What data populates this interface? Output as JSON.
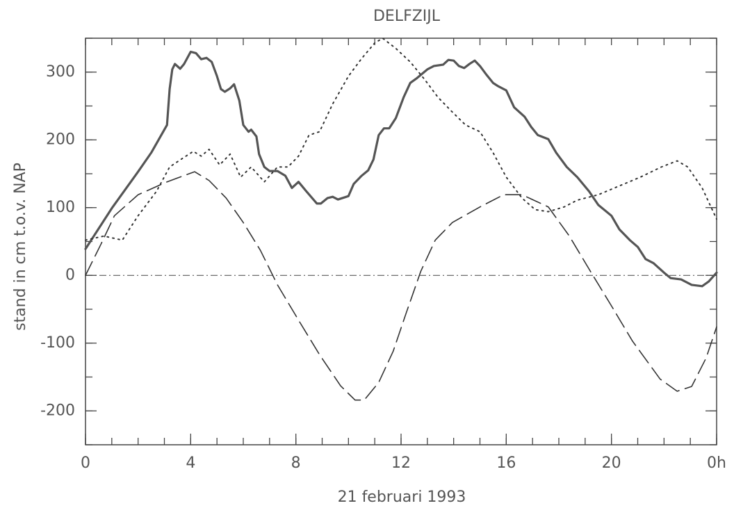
{
  "chart_data": {
    "type": "line",
    "title": "DELFZIJL",
    "x_label": "21 februari 1993",
    "y_label": "stand in cm t.o.v. NAP",
    "xlim": [
      0,
      24
    ],
    "xticks": [
      0,
      4,
      8,
      12,
      16,
      20,
      {
        "value": 24,
        "label": "0h"
      }
    ],
    "ylim": [
      -250,
      350
    ],
    "yticks": [
      -200,
      -100,
      0,
      100,
      200,
      300
    ],
    "series": [
      {
        "color": "#555555",
        "style": "solid",
        "x": [
          0,
          1,
          2,
          2.5,
          3.1,
          3.2,
          3.3,
          3.4,
          3.6,
          3.75,
          4.0,
          4.2,
          4.4,
          4.6,
          4.8,
          5.0,
          5.15,
          5.3,
          5.5,
          5.65,
          5.85,
          6.0,
          6.2,
          6.3,
          6.5,
          6.6,
          6.8,
          7.0,
          7.3,
          7.6,
          7.85,
          8.1,
          8.4,
          8.8,
          8.95,
          9.2,
          9.4,
          9.6,
          10.0,
          10.2,
          10.5,
          10.75,
          10.95,
          11.15,
          11.35,
          11.55,
          11.8,
          12.1,
          12.35,
          12.6,
          13.0,
          13.25,
          13.6,
          13.8,
          14.0,
          14.2,
          14.4,
          14.6,
          14.8,
          15.0,
          15.25,
          15.5,
          15.7,
          16.0,
          16.3,
          16.7,
          16.95,
          17.2,
          17.6,
          17.9,
          18.3,
          18.7,
          19.15,
          19.5,
          20.0,
          20.3,
          20.7,
          21.0,
          21.3,
          21.6,
          22.0,
          22.25,
          22.65,
          23.05,
          23.45,
          23.7,
          24
        ],
        "values": [
          39,
          99,
          153,
          181,
          222,
          275,
          304,
          312,
          305,
          312,
          330,
          328,
          319,
          321,
          315,
          294,
          275,
          271,
          276,
          282,
          258,
          222,
          212,
          215,
          205,
          179,
          160,
          154,
          154,
          147,
          129,
          138,
          124,
          106,
          106,
          114,
          116,
          112,
          117,
          135,
          147,
          155,
          171,
          207,
          217,
          217,
          232,
          263,
          284,
          291,
          304,
          309,
          311,
          318,
          317,
          309,
          306,
          312,
          317,
          309,
          296,
          284,
          279,
          273,
          248,
          234,
          219,
          207,
          201,
          181,
          160,
          145,
          124,
          104,
          88,
          68,
          52,
          42,
          24,
          18,
          4,
          -4,
          -6,
          -14,
          -16,
          -9,
          4
        ]
      },
      {
        "color": "#333333",
        "style": "dotted",
        "x": [
          0,
          0.7,
          1.4,
          2.0,
          2.7,
          3.2,
          3.7,
          4.1,
          4.4,
          4.7,
          5.1,
          5.5,
          5.9,
          6.3,
          6.8,
          7.3,
          7.7,
          8.1,
          8.5,
          8.9,
          9.4,
          10.0,
          10.5,
          11.0,
          11.3,
          11.8,
          12.35,
          12.9,
          13.4,
          13.9,
          14.45,
          15.0,
          15.5,
          16.0,
          16.6,
          17.1,
          17.6,
          18.2,
          18.7,
          19.5,
          20.3,
          21.1,
          21.9,
          22.5,
          22.9,
          23.45,
          24
        ],
        "values": [
          52,
          58,
          52,
          88,
          124,
          160,
          173,
          183,
          176,
          186,
          163,
          179,
          145,
          160,
          138,
          160,
          160,
          176,
          207,
          212,
          253,
          294,
          320,
          343,
          350,
          335,
          315,
          289,
          263,
          243,
          222,
          212,
          181,
          145,
          114,
          97,
          94,
          101,
          111,
          119,
          132,
          145,
          160,
          169,
          160,
          129,
          83
        ]
      },
      {
        "color": "#333333",
        "style": "dashed",
        "x": [
          0,
          0.6,
          1.1,
          2.0,
          3.1,
          4.15,
          4.7,
          5.35,
          6.0,
          6.65,
          7.3,
          8.1,
          8.9,
          9.7,
          10.25,
          10.6,
          11.15,
          11.7,
          12.2,
          12.75,
          13.3,
          13.95,
          15.0,
          15.9,
          16.6,
          17.6,
          18.4,
          19.2,
          20.0,
          20.8,
          21.85,
          22.5,
          23.05,
          23.6,
          24
        ],
        "values": [
          0,
          47,
          88,
          119,
          138,
          153,
          140,
          114,
          78,
          37,
          -14,
          -66,
          -117,
          -163,
          -184,
          -184,
          -158,
          -112,
          -55,
          6,
          52,
          78,
          101,
          119,
          119,
          101,
          58,
          6,
          -45,
          -97,
          -153,
          -171,
          -164,
          -122,
          -76
        ]
      }
    ]
  }
}
